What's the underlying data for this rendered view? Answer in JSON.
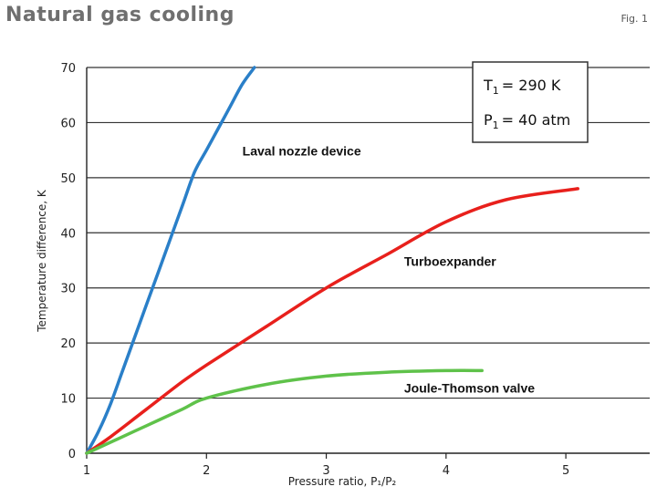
{
  "header": {
    "title": "Natural gas cooling",
    "fig_label": "Fig. 1"
  },
  "conditions": {
    "t1_label": "T",
    "t1_sub": "1",
    "t1_value": "= 290 K",
    "p1_label": "P",
    "p1_sub": "1",
    "p1_value": "= 40 atm"
  },
  "chart_data": {
    "type": "line",
    "title": "Natural gas cooling",
    "xlabel": "Pressure ratio, P₁/P₂",
    "ylabel": "Temperature difference, K",
    "xlim": [
      1,
      5.7
    ],
    "ylim": [
      0,
      70
    ],
    "xticks": [
      1,
      2,
      3,
      4,
      5
    ],
    "yticks": [
      0,
      10,
      20,
      30,
      40,
      50,
      60,
      70
    ],
    "grid": "horizontal",
    "series": [
      {
        "name": "Laval nozzle device",
        "color": "#2a7fc8",
        "x": [
          1.0,
          1.1,
          1.2,
          1.3,
          1.4,
          1.5,
          1.6,
          1.7,
          1.8,
          1.9,
          2.0,
          2.1,
          2.2,
          2.3,
          2.4
        ],
        "y": [
          0,
          4,
          9,
          15,
          21,
          27,
          33,
          39,
          45,
          51,
          55,
          59,
          63,
          67,
          70
        ]
      },
      {
        "name": "Turboexpander",
        "color": "#e8201c",
        "x": [
          1.0,
          1.2,
          1.5,
          1.8,
          2.0,
          2.5,
          3.0,
          3.5,
          4.0,
          4.5,
          5.1
        ],
        "y": [
          0,
          3,
          8,
          13,
          16,
          23,
          30,
          36,
          42,
          46,
          48
        ]
      },
      {
        "name": "Joule-Thomson valve",
        "color": "#5fc24a",
        "x": [
          1.0,
          1.2,
          1.5,
          1.8,
          2.0,
          2.5,
          3.0,
          3.5,
          4.0,
          4.3
        ],
        "y": [
          0,
          2,
          5,
          8,
          10,
          12.5,
          14,
          14.7,
          15,
          15
        ]
      }
    ],
    "annotations": [
      {
        "text": "Laval nozzle device",
        "x": 2.3,
        "y": 54
      },
      {
        "text": "Turboexpander",
        "x": 3.65,
        "y": 34
      },
      {
        "text": "Joule-Thomson valve",
        "x": 3.65,
        "y": 11
      }
    ]
  }
}
